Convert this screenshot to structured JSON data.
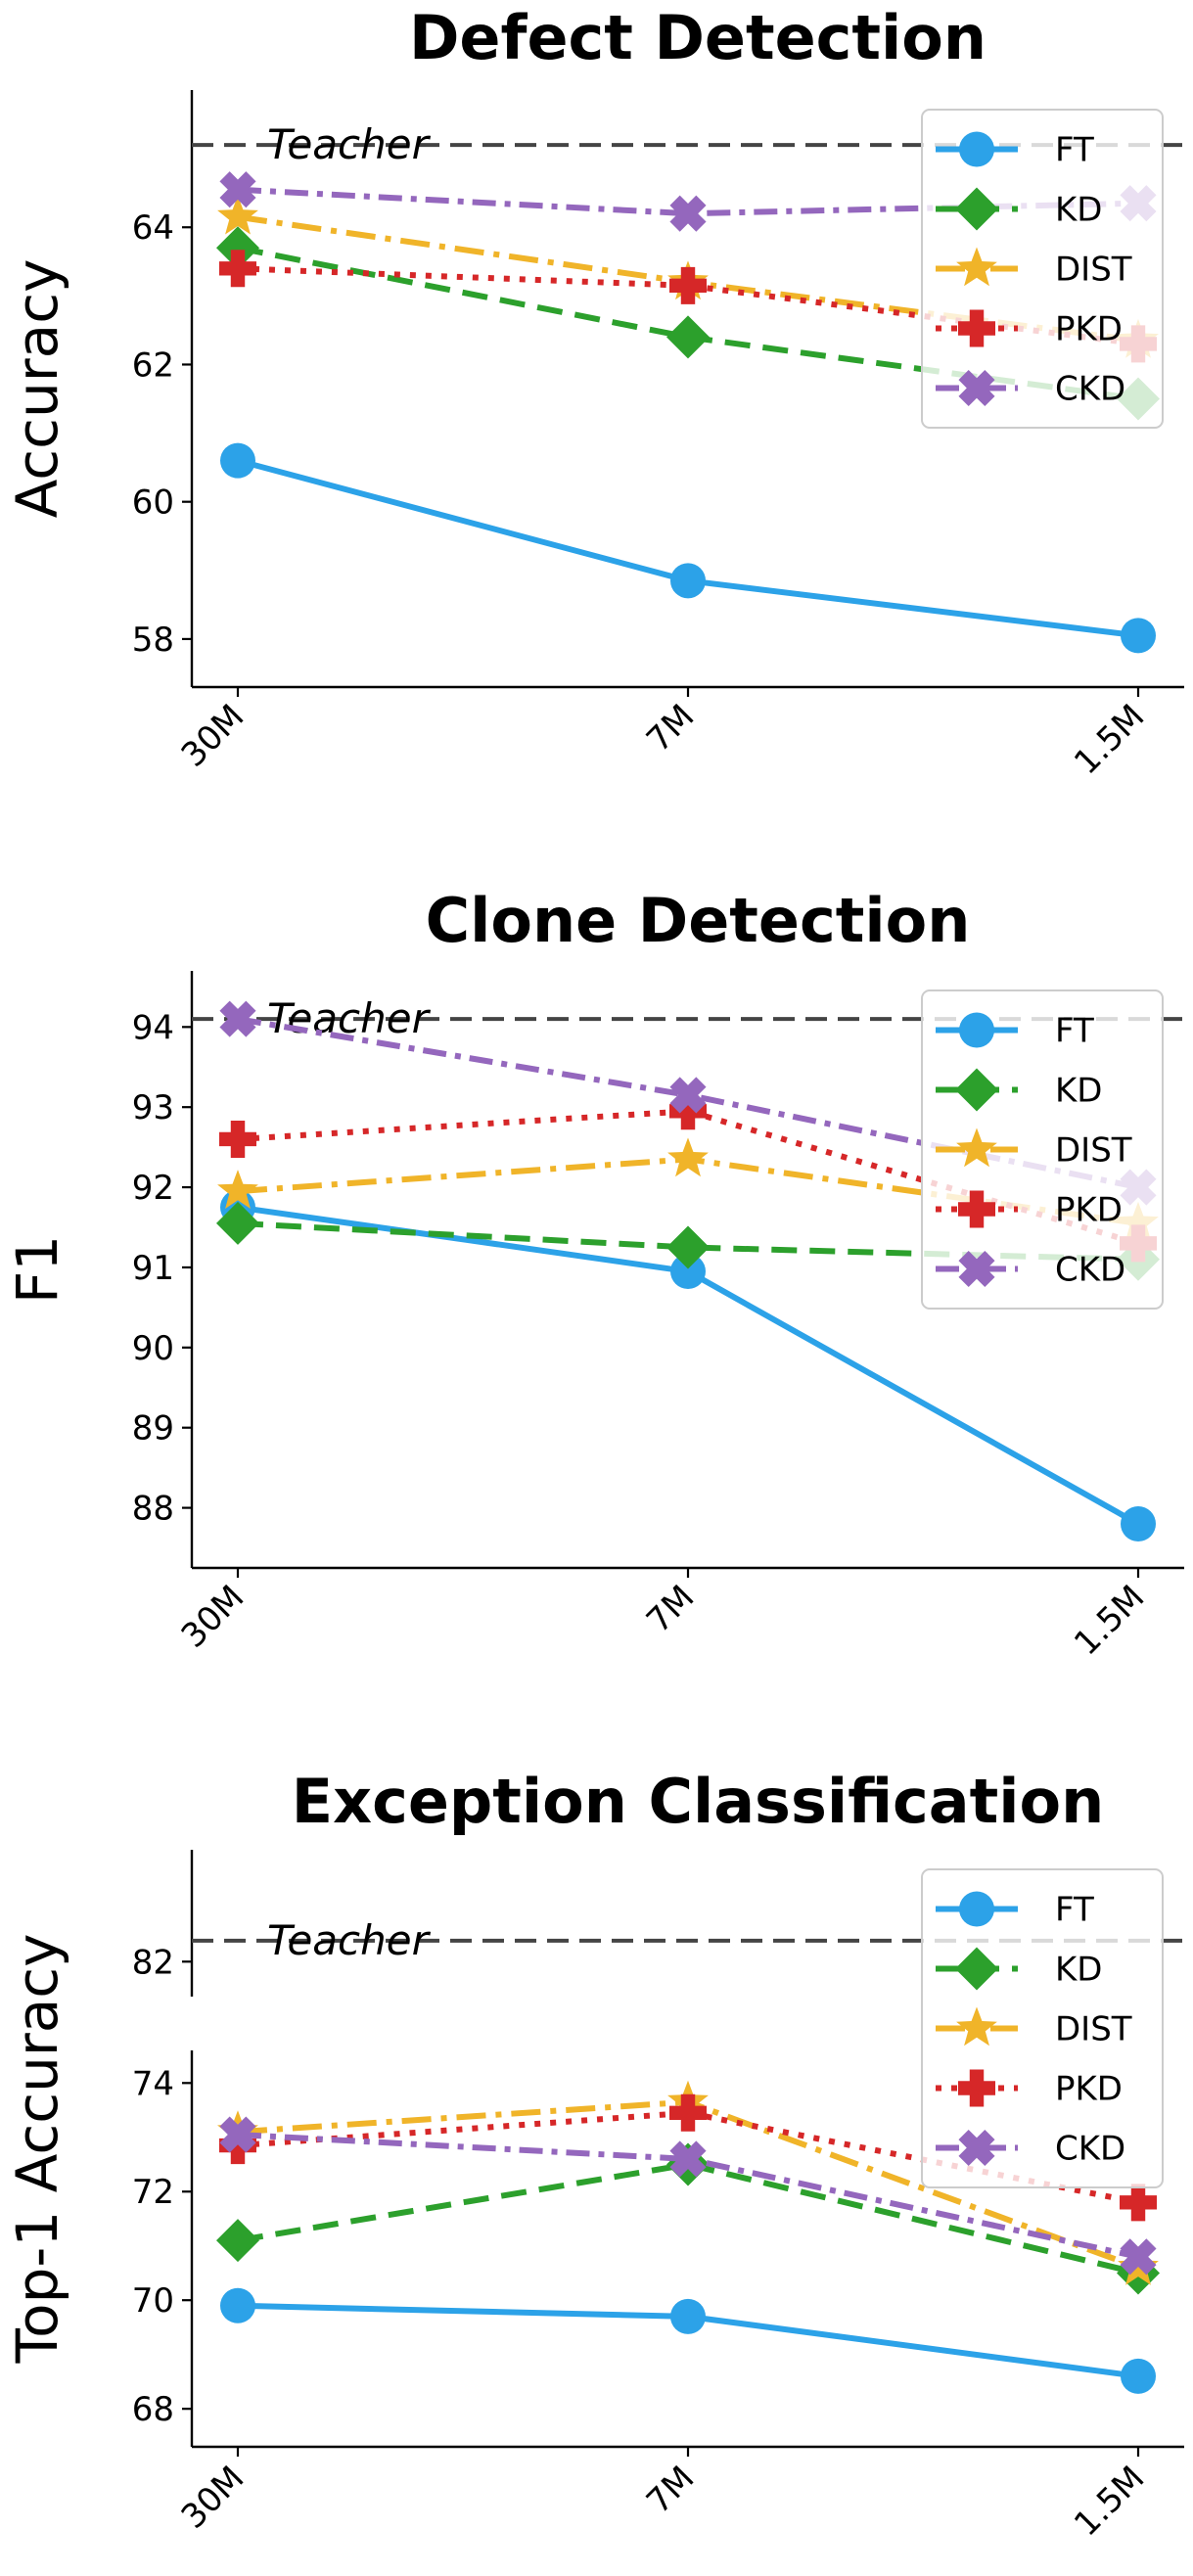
{
  "chart_data": [
    {
      "type": "line",
      "title": "Defect Detection",
      "xlabel": "",
      "ylabel": "Accuracy",
      "categories": [
        "30M",
        "7M",
        "1.5M"
      ],
      "ylim": [
        57.3,
        66.0
      ],
      "yticks": [
        58,
        60,
        62,
        64
      ],
      "tick_labels": [
        "58",
        "60",
        "62",
        "64"
      ],
      "teacher": {
        "label": "Teacher",
        "value": 65.2
      },
      "legend_position": "top-right",
      "series": [
        {
          "name": "FT",
          "values": [
            60.6,
            58.85,
            58.05
          ]
        },
        {
          "name": "KD",
          "values": [
            63.7,
            62.4,
            61.5
          ]
        },
        {
          "name": "DIST",
          "values": [
            64.15,
            63.2,
            62.35
          ]
        },
        {
          "name": "PKD",
          "values": [
            63.4,
            63.15,
            62.3
          ]
        },
        {
          "name": "CKD",
          "values": [
            64.55,
            64.2,
            64.35
          ]
        }
      ]
    },
    {
      "type": "line",
      "title": "Clone Detection",
      "xlabel": "",
      "ylabel": "F1",
      "categories": [
        "30M",
        "7M",
        "1.5M"
      ],
      "ylim": [
        87.25,
        94.7
      ],
      "yticks": [
        88,
        89,
        90,
        91,
        92,
        93,
        94
      ],
      "tick_labels": [
        "88",
        "89",
        "90",
        "91",
        "92",
        "93",
        "94"
      ],
      "teacher": {
        "label": "Teacher",
        "value": 94.1
      },
      "legend_position": "top-right",
      "series": [
        {
          "name": "FT",
          "values": [
            91.75,
            90.95,
            87.8
          ]
        },
        {
          "name": "KD",
          "values": [
            91.55,
            91.25,
            91.1
          ]
        },
        {
          "name": "DIST",
          "values": [
            91.95,
            92.35,
            91.55
          ]
        },
        {
          "name": "PKD",
          "values": [
            92.6,
            92.95,
            91.3
          ]
        },
        {
          "name": "CKD",
          "values": [
            94.1,
            93.15,
            92.0
          ]
        }
      ]
    },
    {
      "type": "line",
      "title": "Exception Classification",
      "xlabel": "",
      "ylabel": "Top-1 Accuracy",
      "categories": [
        "30M",
        "7M",
        "1.5M"
      ],
      "broken_axis": true,
      "ylim_upper": [
        81.5,
        83.6
      ],
      "ylim_lower": [
        67.3,
        74.6
      ],
      "yticks_upper": [
        82
      ],
      "tick_labels_upper": [
        "82"
      ],
      "yticks_lower": [
        68,
        70,
        72,
        74
      ],
      "tick_labels_lower": [
        "68",
        "70",
        "72",
        "74"
      ],
      "teacher": {
        "label": "Teacher",
        "value": 82.3
      },
      "legend_position": "top-right",
      "series": [
        {
          "name": "FT",
          "values": [
            69.9,
            69.7,
            68.6
          ]
        },
        {
          "name": "KD",
          "values": [
            71.1,
            72.5,
            70.5
          ]
        },
        {
          "name": "DIST",
          "values": [
            73.1,
            73.65,
            70.6
          ]
        },
        {
          "name": "PKD",
          "values": [
            72.85,
            73.45,
            71.8
          ]
        },
        {
          "name": "CKD",
          "values": [
            73.05,
            72.6,
            70.8
          ]
        }
      ]
    }
  ],
  "styles": {
    "FT": {
      "color": "#2ca2e8",
      "dash": "",
      "marker": "circle"
    },
    "KD": {
      "color": "#2ca02c",
      "dash": "26 13",
      "marker": "diamond"
    },
    "DIST": {
      "color": "#f0b429",
      "dash": "30 10 6 10",
      "marker": "star"
    },
    "PKD": {
      "color": "#d62728",
      "dash": "6 10",
      "marker": "plus"
    },
    "CKD": {
      "color": "#9467bd",
      "dash": "24 9 6 9",
      "marker": "x"
    }
  },
  "teacher_color": "#444444"
}
